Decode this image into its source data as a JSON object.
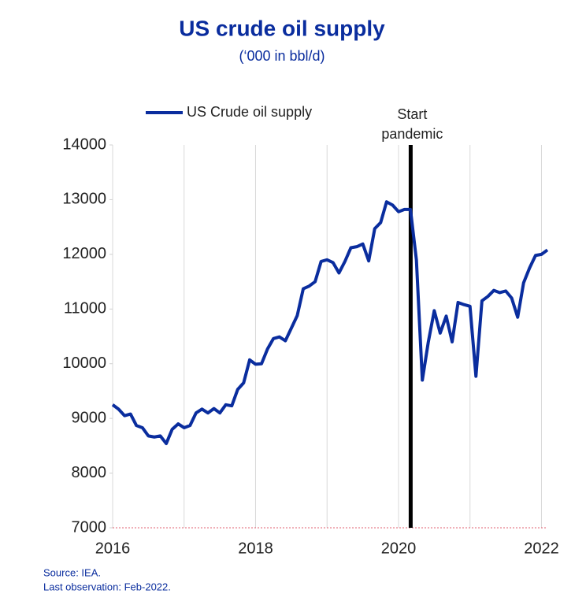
{
  "chart_data": {
    "type": "line",
    "title": "US crude oil supply",
    "subtitle": "(‘000 in bbl/d)",
    "source": [
      "Source: IEA.",
      "Last observation: Feb-2022."
    ],
    "x": [
      2016,
      2016.083,
      2016.167,
      2016.25,
      2016.333,
      2016.417,
      2016.5,
      2016.583,
      2016.667,
      2016.75,
      2016.833,
      2016.917,
      2017,
      2017.083,
      2017.167,
      2017.25,
      2017.333,
      2017.417,
      2017.5,
      2017.583,
      2017.667,
      2017.75,
      2017.833,
      2017.917,
      2018,
      2018.083,
      2018.167,
      2018.25,
      2018.333,
      2018.417,
      2018.5,
      2018.583,
      2018.667,
      2018.75,
      2018.833,
      2018.917,
      2019,
      2019.083,
      2019.167,
      2019.25,
      2019.333,
      2019.417,
      2019.5,
      2019.583,
      2019.667,
      2019.75,
      2019.833,
      2019.917,
      2020,
      2020.083,
      2020.167,
      2020.25,
      2020.333,
      2020.417,
      2020.5,
      2020.583,
      2020.667,
      2020.75,
      2020.833,
      2020.917,
      2021,
      2021.083,
      2021.167,
      2021.25,
      2021.333,
      2021.417,
      2021.5,
      2021.583,
      2021.667,
      2021.75,
      2021.833,
      2021.917,
      2022,
      2022.083
    ],
    "series": [
      {
        "name": "US Crude oil supply",
        "color": "#0a2d9e",
        "values": [
          9250,
          9170,
          9050,
          9080,
          8870,
          8830,
          8680,
          8660,
          8680,
          8540,
          8800,
          8900,
          8830,
          8870,
          9100,
          9170,
          9100,
          9180,
          9100,
          9250,
          9230,
          9530,
          9650,
          10070,
          9990,
          10000,
          10270,
          10460,
          10490,
          10420,
          10650,
          10880,
          11370,
          11420,
          11500,
          11870,
          11900,
          11850,
          11660,
          11870,
          12120,
          12140,
          12190,
          11880,
          12470,
          12580,
          12960,
          12900,
          12780,
          12820,
          12820,
          11900,
          9700,
          10400,
          10970,
          10560,
          10870,
          10400,
          11120,
          11080,
          11050,
          9770,
          11150,
          11230,
          11340,
          11300,
          11330,
          11200,
          10850,
          11480,
          11750,
          11980,
          12000,
          12080
        ]
      }
    ],
    "xlim": [
      2016,
      2022.083
    ],
    "xticks": [
      2016,
      2018,
      2020,
      2022
    ],
    "xminor_ticks": [
      2017,
      2019,
      2021
    ],
    "ylim": [
      7000,
      14000
    ],
    "yticks": [
      7000,
      8000,
      9000,
      10000,
      11000,
      12000,
      13000,
      14000
    ],
    "annotation": {
      "x": 2020.17,
      "lines": [
        "Start",
        "pandemic"
      ],
      "color": "#000000"
    },
    "grid": true,
    "legend": "top-left"
  }
}
